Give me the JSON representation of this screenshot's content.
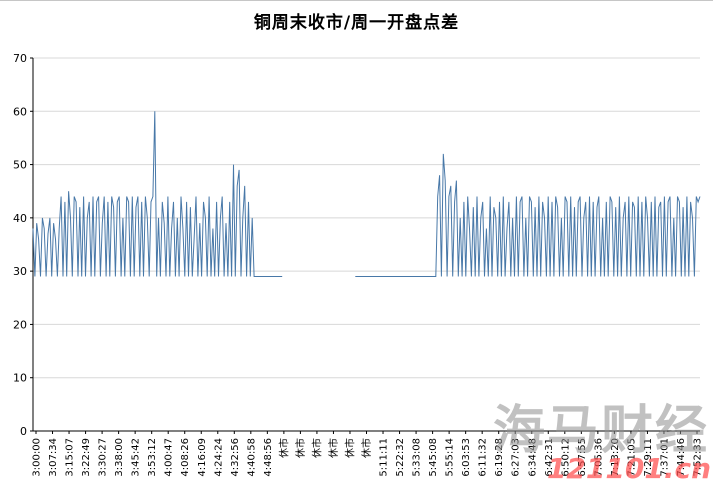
{
  "watermark": {
    "brand": "海马财经",
    "domain": "121101.cn"
  },
  "chart_data": {
    "type": "line",
    "title": "铜周末收市/周一开盘点差",
    "xlabel": "",
    "ylabel": "",
    "series_name": "点差",
    "series_color": "#4878A8",
    "grid": true,
    "legend": "none",
    "ylim": [
      0,
      70
    ],
    "yticks": [
      0,
      10,
      20,
      30,
      40,
      50,
      60,
      70
    ],
    "x_tick_labels": [
      "3:00:00",
      "3:07:34",
      "3:15:07",
      "3:22:49",
      "3:30:27",
      "3:38:00",
      "3:45:42",
      "3:53:12",
      "4:00:47",
      "4:08:26",
      "4:16:09",
      "4:24:24",
      "4:32:56",
      "4:40:58",
      "4:48:56",
      "休市",
      "休市",
      "休市",
      "休市",
      "休市",
      "休市",
      "5:11:11",
      "5:22:32",
      "5:33:08",
      "5:45:08",
      "5:55:14",
      "6:03:53",
      "6:11:32",
      "6:19:28",
      "6:27:03",
      "6:34:48",
      "6:42:31",
      "6:50:12",
      "6:57:55",
      "7:05:36",
      "7:13:20",
      "7:21:05",
      "7:29:11",
      "7:37:01",
      "7:44:46",
      "7:52:33"
    ],
    "values": [
      38,
      29,
      39,
      36,
      29,
      40,
      38,
      29,
      37,
      40,
      29,
      39,
      36,
      29,
      38,
      44,
      29,
      43,
      29,
      45,
      40,
      29,
      44,
      43,
      29,
      42,
      29,
      44,
      29,
      40,
      43,
      29,
      44,
      29,
      43,
      44,
      29,
      39,
      44,
      29,
      43,
      29,
      44,
      42,
      29,
      43,
      44,
      29,
      40,
      29,
      44,
      43,
      29,
      44,
      29,
      42,
      44,
      29,
      43,
      29,
      44,
      40,
      29,
      43,
      44,
      60,
      29,
      40,
      29,
      43,
      39,
      29,
      44,
      29,
      38,
      43,
      29,
      40,
      29,
      44,
      38,
      29,
      43,
      29,
      42,
      29,
      36,
      44,
      29,
      39,
      29,
      43,
      40,
      29,
      44,
      29,
      38,
      29,
      43,
      29,
      40,
      44,
      29,
      39,
      29,
      43,
      29,
      50,
      29,
      46,
      49,
      29,
      40,
      46,
      29,
      43,
      29,
      40,
      29,
      29,
      29,
      29,
      29,
      29,
      29,
      29,
      29,
      29,
      29,
      29,
      29,
      29,
      29,
      29,
      null,
      null,
      null,
      null,
      null,
      null,
      null,
      null,
      null,
      null,
      null,
      null,
      null,
      null,
      null,
      null,
      null,
      null,
      null,
      null,
      null,
      null,
      null,
      null,
      null,
      null,
      null,
      null,
      null,
      null,
      null,
      null,
      null,
      null,
      null,
      null,
      null,
      null,
      29,
      29,
      29,
      29,
      29,
      29,
      29,
      29,
      29,
      29,
      29,
      29,
      29,
      29,
      29,
      29,
      29,
      29,
      29,
      29,
      29,
      29,
      29,
      29,
      29,
      29,
      29,
      29,
      29,
      29,
      29,
      29,
      29,
      29,
      29,
      29,
      29,
      29,
      29,
      29,
      29,
      29,
      29,
      29,
      44,
      48,
      29,
      52,
      47,
      29,
      44,
      46,
      29,
      43,
      47,
      29,
      40,
      29,
      43,
      29,
      44,
      38,
      29,
      42,
      29,
      44,
      29,
      40,
      43,
      29,
      38,
      29,
      44,
      29,
      42,
      40,
      29,
      43,
      29,
      44,
      29,
      38,
      43,
      29,
      40,
      29,
      44,
      29,
      43,
      44,
      29,
      40,
      29,
      44,
      43,
      29,
      42,
      29,
      44,
      29,
      43,
      40,
      29,
      44,
      29,
      43,
      29,
      44,
      42,
      29,
      40,
      29,
      44,
      43,
      29,
      44,
      29,
      42,
      29,
      43,
      44,
      29,
      40,
      43,
      29,
      44,
      29,
      43,
      29,
      42,
      44,
      29,
      40,
      29,
      43,
      29,
      44,
      43,
      29,
      42,
      29,
      44,
      29,
      40,
      43,
      29,
      44,
      29,
      43,
      42,
      29,
      44,
      29,
      43,
      29,
      44,
      40,
      29,
      43,
      29,
      44,
      29,
      42,
      43,
      29,
      44,
      29,
      43,
      44,
      29,
      40,
      29,
      44,
      43,
      29,
      42,
      29,
      44,
      29,
      43,
      40,
      29,
      44,
      43,
      44
    ]
  }
}
